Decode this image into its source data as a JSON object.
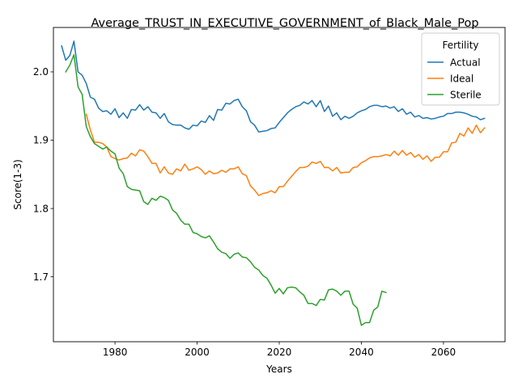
{
  "chart_data": {
    "type": "line",
    "title": "Average_TRUST_IN_EXECUTIVE_GOVERNMENT_of_Black_Male_Pop",
    "xlabel": "Years",
    "ylabel": "Score(1-3)",
    "xlim": [
      1965,
      2075
    ],
    "ylim": [
      1.605,
      2.065
    ],
    "xticks": [
      1980,
      2000,
      2020,
      2040,
      2060
    ],
    "yticks": [
      1.7,
      1.8,
      1.9,
      2.0
    ],
    "grid": false,
    "legend": {
      "title": "Fertility",
      "placement": "top-right"
    },
    "series": [
      {
        "name": "Actual",
        "color": "#1f77b4",
        "points": [
          [
            1967,
            2.038
          ],
          [
            1968,
            2.017
          ],
          [
            1969,
            2.024
          ],
          [
            1970,
            2.045
          ],
          [
            1971,
            2.0
          ],
          [
            1972,
            1.995
          ],
          [
            1973,
            1.983
          ],
          [
            1974,
            1.963
          ],
          [
            1975,
            1.96
          ],
          [
            1976,
            1.947
          ],
          [
            1977,
            1.942
          ],
          [
            1978,
            1.943
          ],
          [
            1979,
            1.938
          ],
          [
            1980,
            1.946
          ],
          [
            1981,
            1.933
          ],
          [
            1982,
            1.94
          ],
          [
            1983,
            1.932
          ],
          [
            1984,
            1.945
          ],
          [
            1985,
            1.944
          ],
          [
            1986,
            1.952
          ],
          [
            1987,
            1.944
          ],
          [
            1988,
            1.949
          ],
          [
            1989,
            1.941
          ],
          [
            1990,
            1.94
          ],
          [
            1991,
            1.932
          ],
          [
            1992,
            1.939
          ],
          [
            1993,
            1.927
          ],
          [
            1994,
            1.923
          ],
          [
            1995,
            1.922
          ],
          [
            1996,
            1.922
          ],
          [
            1997,
            1.918
          ],
          [
            1998,
            1.916
          ],
          [
            1999,
            1.922
          ],
          [
            2000,
            1.921
          ],
          [
            2001,
            1.928
          ],
          [
            2002,
            1.926
          ],
          [
            2003,
            1.936
          ],
          [
            2004,
            1.929
          ],
          [
            2005,
            1.945
          ],
          [
            2006,
            1.944
          ],
          [
            2007,
            1.954
          ],
          [
            2008,
            1.953
          ],
          [
            2009,
            1.958
          ],
          [
            2010,
            1.96
          ],
          [
            2011,
            1.949
          ],
          [
            2012,
            1.943
          ],
          [
            2013,
            1.927
          ],
          [
            2014,
            1.922
          ],
          [
            2015,
            1.912
          ],
          [
            2016,
            1.913
          ],
          [
            2017,
            1.914
          ],
          [
            2018,
            1.917
          ],
          [
            2019,
            1.918
          ],
          [
            2020,
            1.926
          ],
          [
            2021,
            1.933
          ],
          [
            2022,
            1.94
          ],
          [
            2023,
            1.945
          ],
          [
            2024,
            1.949
          ],
          [
            2025,
            1.951
          ],
          [
            2026,
            1.956
          ],
          [
            2027,
            1.953
          ],
          [
            2028,
            1.958
          ],
          [
            2029,
            1.949
          ],
          [
            2030,
            1.958
          ],
          [
            2031,
            1.942
          ],
          [
            2032,
            1.95
          ],
          [
            2033,
            1.935
          ],
          [
            2034,
            1.94
          ],
          [
            2035,
            1.93
          ],
          [
            2036,
            1.935
          ],
          [
            2037,
            1.932
          ],
          [
            2038,
            1.935
          ],
          [
            2039,
            1.94
          ],
          [
            2040,
            1.943
          ],
          [
            2041,
            1.945
          ],
          [
            2042,
            1.949
          ],
          [
            2043,
            1.951
          ],
          [
            2044,
            1.951
          ],
          [
            2045,
            1.949
          ],
          [
            2046,
            1.95
          ],
          [
            2047,
            1.947
          ],
          [
            2048,
            1.949
          ],
          [
            2049,
            1.942
          ],
          [
            2050,
            1.946
          ],
          [
            2051,
            1.938
          ],
          [
            2052,
            1.941
          ],
          [
            2053,
            1.934
          ],
          [
            2054,
            1.936
          ],
          [
            2055,
            1.932
          ],
          [
            2056,
            1.933
          ],
          [
            2057,
            1.931
          ],
          [
            2058,
            1.932
          ],
          [
            2059,
            1.934
          ],
          [
            2060,
            1.935
          ],
          [
            2061,
            1.939
          ],
          [
            2062,
            1.939
          ],
          [
            2063,
            1.941
          ],
          [
            2064,
            1.941
          ],
          [
            2065,
            1.94
          ],
          [
            2066,
            1.938
          ],
          [
            2067,
            1.935
          ],
          [
            2068,
            1.934
          ],
          [
            2069,
            1.93
          ],
          [
            2070,
            1.932
          ]
        ]
      },
      {
        "name": "Ideal",
        "color": "#ff7f0e",
        "points": [
          [
            1973,
            1.938
          ],
          [
            1974,
            1.915
          ],
          [
            1975,
            1.897
          ],
          [
            1976,
            1.897
          ],
          [
            1977,
            1.895
          ],
          [
            1978,
            1.89
          ],
          [
            1979,
            1.876
          ],
          [
            1980,
            1.873
          ],
          [
            1981,
            1.871
          ],
          [
            1982,
            1.873
          ],
          [
            1983,
            1.874
          ],
          [
            1984,
            1.881
          ],
          [
            1985,
            1.877
          ],
          [
            1986,
            1.886
          ],
          [
            1987,
            1.884
          ],
          [
            1988,
            1.876
          ],
          [
            1989,
            1.866
          ],
          [
            1990,
            1.866
          ],
          [
            1991,
            1.852
          ],
          [
            1992,
            1.861
          ],
          [
            1993,
            1.852
          ],
          [
            1994,
            1.85
          ],
          [
            1995,
            1.858
          ],
          [
            1996,
            1.855
          ],
          [
            1997,
            1.865
          ],
          [
            1998,
            1.856
          ],
          [
            1999,
            1.858
          ],
          [
            2000,
            1.861
          ],
          [
            2001,
            1.857
          ],
          [
            2002,
            1.85
          ],
          [
            2003,
            1.855
          ],
          [
            2004,
            1.851
          ],
          [
            2005,
            1.852
          ],
          [
            2006,
            1.856
          ],
          [
            2007,
            1.853
          ],
          [
            2008,
            1.858
          ],
          [
            2009,
            1.858
          ],
          [
            2010,
            1.861
          ],
          [
            2011,
            1.851
          ],
          [
            2012,
            1.848
          ],
          [
            2013,
            1.833
          ],
          [
            2014,
            1.827
          ],
          [
            2015,
            1.819
          ],
          [
            2016,
            1.822
          ],
          [
            2017,
            1.823
          ],
          [
            2018,
            1.826
          ],
          [
            2019,
            1.823
          ],
          [
            2020,
            1.832
          ],
          [
            2021,
            1.832
          ],
          [
            2022,
            1.84
          ],
          [
            2023,
            1.847
          ],
          [
            2024,
            1.854
          ],
          [
            2025,
            1.86
          ],
          [
            2026,
            1.86
          ],
          [
            2027,
            1.862
          ],
          [
            2028,
            1.868
          ],
          [
            2029,
            1.866
          ],
          [
            2030,
            1.869
          ],
          [
            2031,
            1.86
          ],
          [
            2032,
            1.86
          ],
          [
            2033,
            1.855
          ],
          [
            2034,
            1.86
          ],
          [
            2035,
            1.852
          ],
          [
            2036,
            1.853
          ],
          [
            2037,
            1.853
          ],
          [
            2038,
            1.86
          ],
          [
            2039,
            1.861
          ],
          [
            2040,
            1.867
          ],
          [
            2041,
            1.87
          ],
          [
            2042,
            1.874
          ],
          [
            2043,
            1.876
          ],
          [
            2044,
            1.876
          ],
          [
            2045,
            1.877
          ],
          [
            2046,
            1.879
          ],
          [
            2047,
            1.877
          ],
          [
            2048,
            1.884
          ],
          [
            2049,
            1.878
          ],
          [
            2050,
            1.885
          ],
          [
            2051,
            1.878
          ],
          [
            2052,
            1.882
          ],
          [
            2053,
            1.875
          ],
          [
            2054,
            1.879
          ],
          [
            2055,
            1.872
          ],
          [
            2056,
            1.877
          ],
          [
            2057,
            1.869
          ],
          [
            2058,
            1.875
          ],
          [
            2059,
            1.875
          ],
          [
            2060,
            1.883
          ],
          [
            2061,
            1.883
          ],
          [
            2062,
            1.896
          ],
          [
            2063,
            1.897
          ],
          [
            2064,
            1.91
          ],
          [
            2065,
            1.906
          ],
          [
            2066,
            1.918
          ],
          [
            2067,
            1.91
          ],
          [
            2068,
            1.922
          ],
          [
            2069,
            1.911
          ],
          [
            2070,
            1.918
          ]
        ]
      },
      {
        "name": "Sterile",
        "color": "#2ca02c",
        "points": [
          [
            1968,
            2.0
          ],
          [
            1969,
            2.01
          ],
          [
            1970,
            2.025
          ],
          [
            1971,
            1.978
          ],
          [
            1972,
            1.967
          ],
          [
            1973,
            1.92
          ],
          [
            1974,
            1.905
          ],
          [
            1975,
            1.895
          ],
          [
            1976,
            1.891
          ],
          [
            1977,
            1.887
          ],
          [
            1978,
            1.89
          ],
          [
            1979,
            1.884
          ],
          [
            1980,
            1.88
          ],
          [
            1981,
            1.859
          ],
          [
            1982,
            1.851
          ],
          [
            1983,
            1.832
          ],
          [
            1984,
            1.828
          ],
          [
            1985,
            1.827
          ],
          [
            1986,
            1.826
          ],
          [
            1987,
            1.81
          ],
          [
            1988,
            1.806
          ],
          [
            1989,
            1.815
          ],
          [
            1990,
            1.812
          ],
          [
            1991,
            1.818
          ],
          [
            1992,
            1.816
          ],
          [
            1993,
            1.812
          ],
          [
            1994,
            1.798
          ],
          [
            1995,
            1.793
          ],
          [
            1996,
            1.783
          ],
          [
            1997,
            1.777
          ],
          [
            1998,
            1.777
          ],
          [
            1999,
            1.765
          ],
          [
            2000,
            1.763
          ],
          [
            2001,
            1.759
          ],
          [
            2002,
            1.757
          ],
          [
            2003,
            1.76
          ],
          [
            2004,
            1.751
          ],
          [
            2005,
            1.741
          ],
          [
            2006,
            1.736
          ],
          [
            2007,
            1.734
          ],
          [
            2008,
            1.727
          ],
          [
            2009,
            1.733
          ],
          [
            2010,
            1.735
          ],
          [
            2011,
            1.729
          ],
          [
            2012,
            1.728
          ],
          [
            2013,
            1.722
          ],
          [
            2014,
            1.714
          ],
          [
            2015,
            1.71
          ],
          [
            2016,
            1.702
          ],
          [
            2017,
            1.698
          ],
          [
            2018,
            1.688
          ],
          [
            2019,
            1.676
          ],
          [
            2020,
            1.683
          ],
          [
            2021,
            1.675
          ],
          [
            2022,
            1.684
          ],
          [
            2023,
            1.685
          ],
          [
            2024,
            1.684
          ],
          [
            2025,
            1.678
          ],
          [
            2026,
            1.673
          ],
          [
            2027,
            1.661
          ],
          [
            2028,
            1.661
          ],
          [
            2029,
            1.658
          ],
          [
            2030,
            1.667
          ],
          [
            2031,
            1.666
          ],
          [
            2032,
            1.681
          ],
          [
            2033,
            1.682
          ],
          [
            2034,
            1.679
          ],
          [
            2035,
            1.673
          ],
          [
            2036,
            1.679
          ],
          [
            2037,
            1.679
          ],
          [
            2038,
            1.66
          ],
          [
            2039,
            1.654
          ],
          [
            2040,
            1.629
          ],
          [
            2041,
            1.633
          ],
          [
            2042,
            1.633
          ],
          [
            2043,
            1.651
          ],
          [
            2044,
            1.656
          ],
          [
            2045,
            1.679
          ],
          [
            2046,
            1.677
          ]
        ]
      }
    ]
  }
}
